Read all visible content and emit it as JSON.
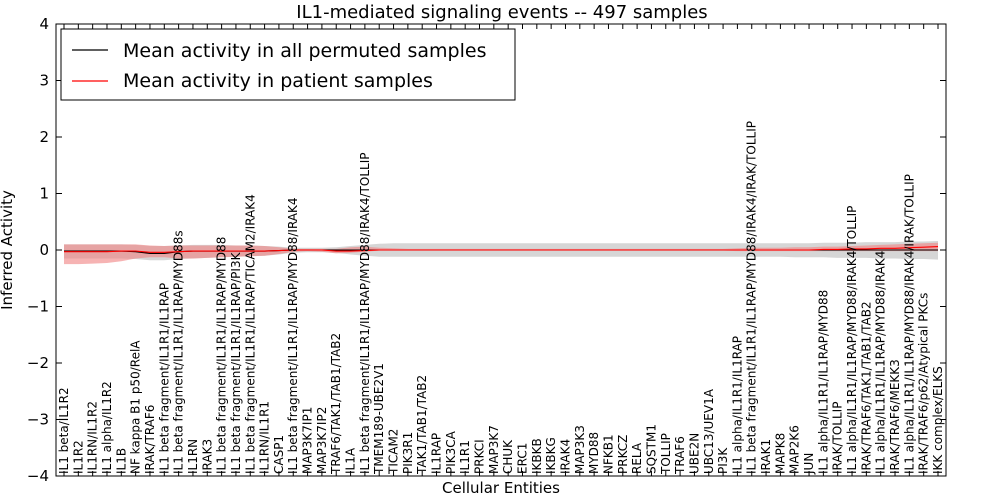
{
  "chart_data": {
    "type": "line",
    "title": "IL1-mediated signaling events -- 497 samples",
    "xlabel": "Cellular Entities",
    "ylabel": "Inferred Activity",
    "ylim": [
      -4,
      4
    ],
    "yticks": [
      -4,
      -3,
      -2,
      -1,
      0,
      1,
      2,
      3,
      4
    ],
    "grid": false,
    "legend_position": "top-left",
    "colors": {
      "permuted_line": "#000000",
      "permuted_band": "#c8c8c8",
      "patient_line": "#ff0000",
      "patient_band": "#f08080"
    },
    "categories": [
      "IL1 beta/IL1R2",
      "IL1R2",
      "IL1RN/IL1R2",
      "IL1 alpha/IL1R2",
      "IL1B",
      "NF kappa B1 p50/RelA",
      "IRAK/TRAF6",
      "IL1 beta fragment/IL1R1/IL1RAP",
      "IL1 beta fragment/IL1R1/IL1RAP/MYD88s",
      "IL1RN",
      "IRAK3",
      "IL1 beta fragment/IL1R1/IL1RAP/MYD88",
      "IL1 beta fragment/IL1R1/IL1RAP/PI3K",
      "IL1 beta fragment/IL1R1/IL1RAP/TICAM2/IRAK4",
      "IL1RN/IL1R1",
      "CASP1",
      "IL1 beta fragment/IL1R1/IL1RAP/MYD88/IRAK4",
      "MAP3K7IP1",
      "MAP3K7IP2",
      "TRAF6/TAK1/TAB1/TAB2",
      "IL1A",
      "IL1 beta fragment/IL1R1/IL1RAP/MYD88/IRAK4/TOLLIP",
      "TMEM189-UBE2V1",
      "TICAM2",
      "PIK3R1",
      "TAK1/TAB1/TAB2",
      "IL1RAP",
      "PIK3CA",
      "IL1R1",
      "PRKCI",
      "MAP3K7",
      "CHUK",
      "ERC1",
      "IKBKB",
      "IKBKG",
      "IRAK4",
      "MAP3K3",
      "MYD88",
      "NFKB1",
      "PRKCZ",
      "RELA",
      "SQSTM1",
      "TOLLIP",
      "TRAF6",
      "UBE2N",
      "UBC13/UEV1A",
      "PI3K",
      "IL1 alpha/IL1R1/IL1RAP",
      "IL1 beta fragment/IL1R1/IL1RAP/MYD88/IRAK4/IRAK/TOLLIP",
      "IRAK1",
      "MAPK8",
      "MAP2K6",
      "JUN",
      "IL1 alpha/IL1R1/IL1RAP/MYD88",
      "IRAK/TOLLIP",
      "IL1 alpha/IL1R1/IL1RAP/MYD88/IRAK4/TOLLIP",
      "IRAK/TRAF6/TAK1/TAB1/TAB2",
      "IL1 alpha/IL1R1/IL1RAP/MYD88/IRAK4",
      "IRAK/TRAF6/MEKK3",
      "IL1 alpha/IL1R1/IL1RAP/MYD88/IRAK4/IRAK/TOLLIP",
      "IRAK/TRAF6/p62/Atypical PKCs",
      "IKK complex/ELKS"
    ],
    "series": [
      {
        "name": "Mean activity in all permuted samples",
        "values": [
          -0.02,
          -0.02,
          -0.02,
          -0.02,
          -0.02,
          -0.03,
          -0.06,
          -0.06,
          -0.03,
          -0.02,
          -0.02,
          -0.02,
          -0.02,
          -0.02,
          -0.02,
          -0.01,
          0,
          0,
          0,
          0,
          0,
          0,
          0,
          0,
          0,
          0,
          0,
          0,
          0,
          0,
          0,
          0,
          0,
          0,
          0,
          0,
          0,
          0,
          0,
          0,
          0,
          0,
          0,
          0,
          0,
          0,
          0,
          0,
          0,
          0,
          0,
          0,
          0,
          0,
          0,
          0,
          0,
          0,
          0,
          0,
          0,
          0
        ],
        "band_low": [
          -0.15,
          -0.15,
          -0.15,
          -0.15,
          -0.15,
          -0.16,
          -0.18,
          -0.18,
          -0.16,
          -0.15,
          -0.14,
          -0.13,
          -0.12,
          -0.11,
          -0.1,
          -0.08,
          -0.05,
          -0.04,
          -0.04,
          -0.05,
          -0.08,
          -0.1,
          -0.12,
          -0.12,
          -0.12,
          -0.12,
          -0.12,
          -0.12,
          -0.12,
          -0.12,
          -0.12,
          -0.12,
          -0.12,
          -0.12,
          -0.12,
          -0.12,
          -0.12,
          -0.12,
          -0.12,
          -0.12,
          -0.12,
          -0.12,
          -0.12,
          -0.12,
          -0.12,
          -0.12,
          -0.12,
          -0.12,
          -0.12,
          -0.12,
          -0.12,
          -0.13,
          -0.13,
          -0.13,
          -0.14,
          -0.14,
          -0.14,
          -0.15,
          -0.15,
          -0.16,
          -0.16,
          -0.17
        ],
        "band_high": [
          0.1,
          0.1,
          0.1,
          0.1,
          0.1,
          0.09,
          0.07,
          0.07,
          0.08,
          0.09,
          0.09,
          0.09,
          0.08,
          0.08,
          0.07,
          0.06,
          0.04,
          0.04,
          0.04,
          0.05,
          0.07,
          0.09,
          0.11,
          0.12,
          0.12,
          0.12,
          0.12,
          0.12,
          0.12,
          0.12,
          0.12,
          0.12,
          0.12,
          0.12,
          0.12,
          0.12,
          0.12,
          0.12,
          0.12,
          0.12,
          0.12,
          0.12,
          0.12,
          0.12,
          0.12,
          0.12,
          0.12,
          0.12,
          0.12,
          0.12,
          0.12,
          0.12,
          0.12,
          0.13,
          0.13,
          0.13,
          0.14,
          0.14,
          0.14,
          0.15,
          0.15,
          0.16
        ]
      },
      {
        "name": "Mean activity in patient samples",
        "values": [
          -0.03,
          -0.03,
          -0.03,
          -0.03,
          -0.02,
          -0.02,
          -0.04,
          -0.04,
          -0.03,
          -0.02,
          -0.02,
          -0.02,
          -0.02,
          -0.02,
          -0.02,
          -0.01,
          0,
          0,
          0,
          -0.02,
          -0.02,
          -0.01,
          0,
          0,
          0,
          0,
          0,
          0,
          0,
          0,
          0,
          0,
          0,
          0,
          0,
          0,
          0,
          0,
          0,
          0,
          0,
          0,
          0,
          0,
          0,
          0,
          0,
          0,
          0,
          0,
          0,
          0,
          0,
          0.01,
          0.01,
          0.02,
          0.02,
          0.03,
          0.03,
          0.04,
          0.05,
          0.06
        ],
        "band_low": [
          -0.25,
          -0.25,
          -0.24,
          -0.23,
          -0.2,
          -0.15,
          -0.13,
          -0.13,
          -0.15,
          -0.15,
          -0.14,
          -0.13,
          -0.12,
          -0.11,
          -0.1,
          -0.07,
          -0.03,
          -0.02,
          -0.03,
          -0.06,
          -0.05,
          -0.03,
          -0.01,
          -0.01,
          -0.01,
          -0.01,
          -0.01,
          -0.01,
          -0.01,
          -0.01,
          -0.01,
          -0.01,
          -0.01,
          -0.01,
          -0.01,
          -0.01,
          -0.01,
          -0.01,
          -0.01,
          -0.01,
          -0.01,
          -0.01,
          -0.01,
          -0.01,
          -0.01,
          -0.01,
          -0.01,
          -0.02,
          -0.02,
          -0.02,
          -0.02,
          -0.02,
          -0.02,
          -0.02,
          -0.02,
          -0.02,
          -0.02,
          -0.02,
          -0.02,
          -0.02,
          -0.02,
          -0.02
        ],
        "band_high": [
          0.1,
          0.1,
          0.1,
          0.1,
          0.1,
          0.1,
          0.08,
          0.07,
          0.08,
          0.08,
          0.08,
          0.08,
          0.08,
          0.08,
          0.07,
          0.05,
          0.02,
          0.02,
          0.02,
          0.02,
          0.05,
          0.06,
          0.04,
          0.03,
          0.02,
          0.02,
          0.02,
          0.02,
          0.02,
          0.02,
          0.02,
          0.02,
          0.02,
          0.02,
          0.02,
          0.02,
          0.02,
          0.02,
          0.02,
          0.02,
          0.02,
          0.02,
          0.02,
          0.02,
          0.02,
          0.02,
          0.02,
          0.03,
          0.04,
          0.04,
          0.04,
          0.05,
          0.05,
          0.06,
          0.06,
          0.07,
          0.08,
          0.09,
          0.1,
          0.11,
          0.12,
          0.13
        ]
      }
    ]
  }
}
